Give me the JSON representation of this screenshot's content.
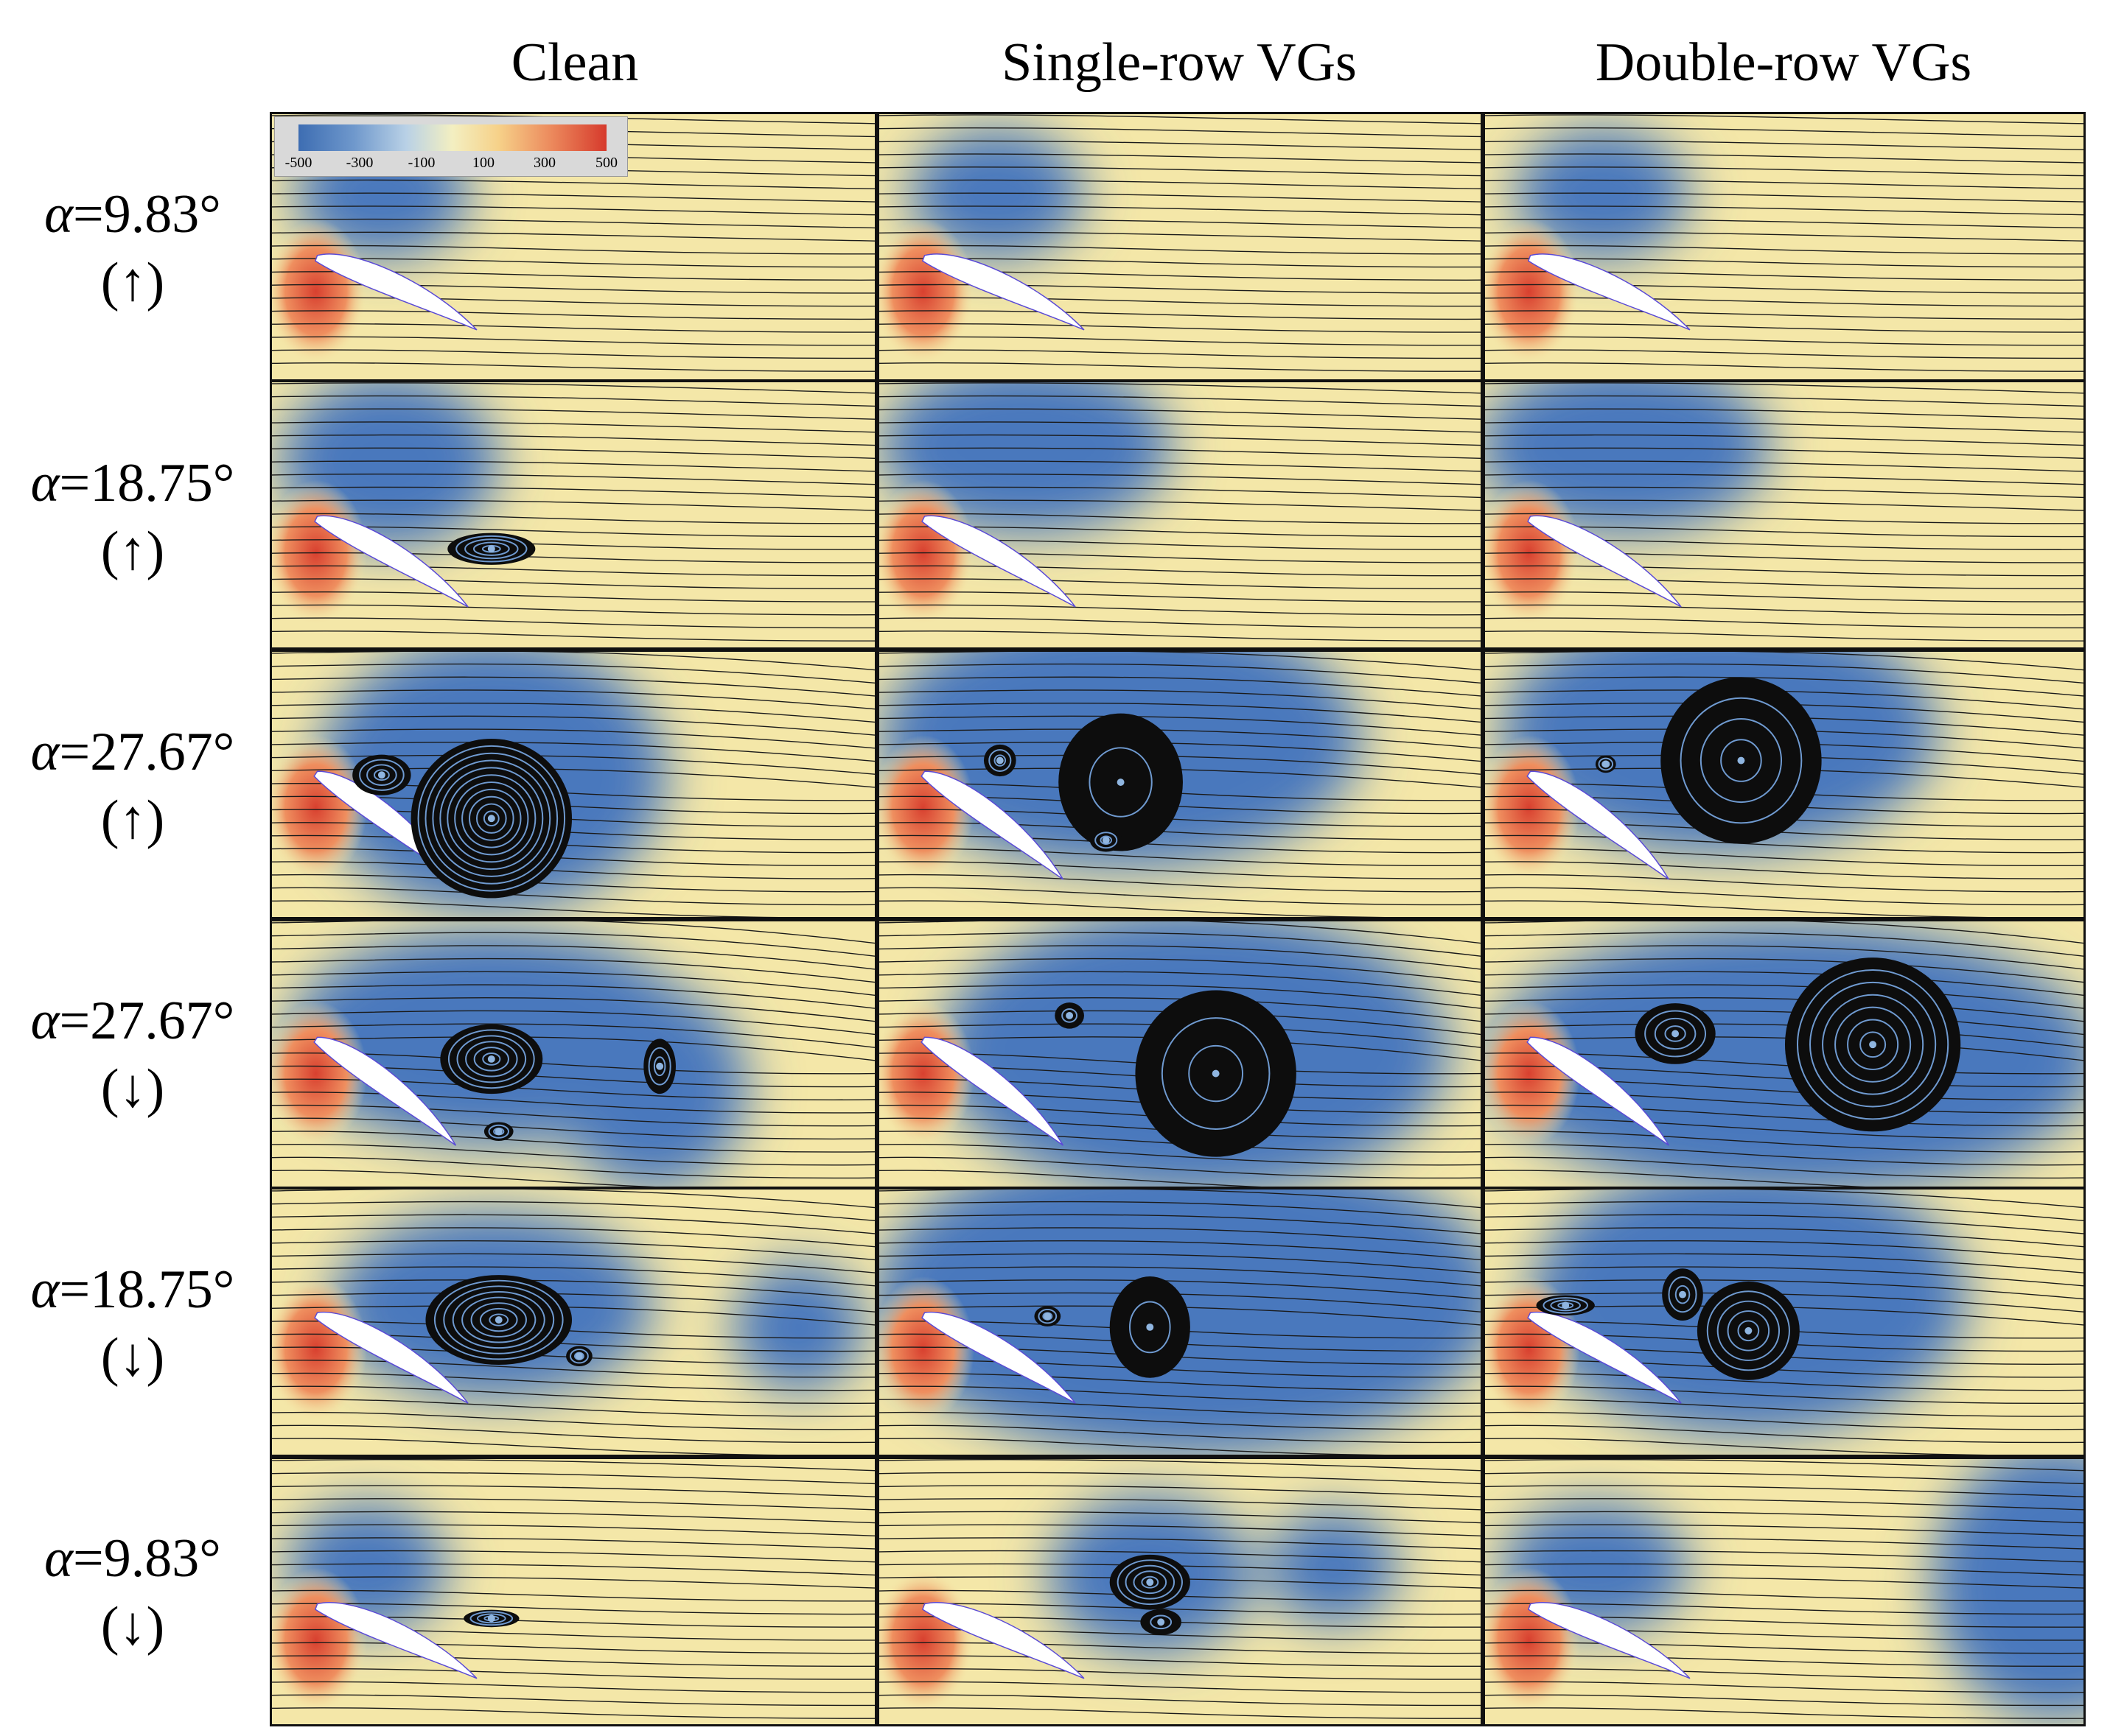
{
  "columns": [
    "Clean",
    "Single-row VGs",
    "Double-row VGs"
  ],
  "rows": [
    {
      "alpha": "α",
      "value": "=9.83°",
      "direction": "(↑)"
    },
    {
      "alpha": "α",
      "value": "=18.75°",
      "direction": "(↑)"
    },
    {
      "alpha": "α",
      "value": "=27.67°",
      "direction": "(↑)"
    },
    {
      "alpha": "α",
      "value": "=27.67°",
      "direction": "(↓)"
    },
    {
      "alpha": "α",
      "value": "=18.75°",
      "direction": "(↓)"
    },
    {
      "alpha": "α",
      "value": "=9.83°",
      "direction": "(↓)"
    }
  ],
  "legend": {
    "ticks": [
      "-500",
      "-300",
      "-100",
      "100",
      "300",
      "500"
    ]
  },
  "colors": {
    "background": "#f4e7a8",
    "low_pressure": "#4a78bd",
    "high_pressure": "#d8402f",
    "streamline": "#1a1a1a"
  }
}
